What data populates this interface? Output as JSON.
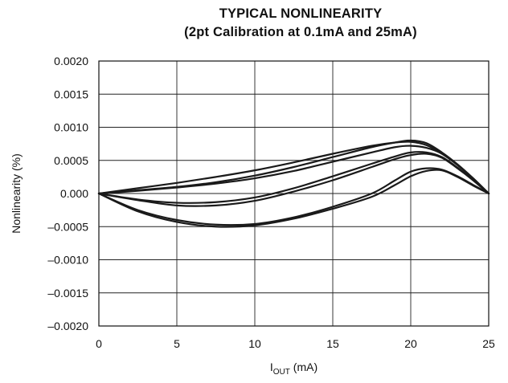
{
  "chart_data": {
    "type": "line",
    "title": "TYPICAL NONLINEARITY",
    "subtitle": "(2pt Calibration at 0.1mA and 25mA)",
    "xlabel": {
      "main": "I",
      "sub": "OUT",
      "unit": " (mA)"
    },
    "ylabel": "Nonlinearity (%)",
    "xlim": [
      0,
      25
    ],
    "ylim": [
      -0.002,
      0.002
    ],
    "x_ticks": [
      0,
      5,
      10,
      15,
      20,
      25
    ],
    "x_tick_labels": [
      "0",
      "5",
      "10",
      "15",
      "20",
      "25"
    ],
    "y_ticks": [
      0.002,
      0.0015,
      0.001,
      0.0005,
      0,
      -0.0005,
      -0.001,
      -0.0015,
      -0.002
    ],
    "y_tick_labels": [
      "0.0020",
      "0.0015",
      "0.0010",
      "0.0005",
      "0.000",
      "–0.0005",
      "–0.0010",
      "–0.0015",
      "–0.0020"
    ],
    "grid": true,
    "line_color": "#1a1a1a",
    "series": [
      {
        "x": [
          0,
          2.5,
          5,
          7.5,
          10,
          12.5,
          15,
          17.5,
          19,
          20,
          21,
          22,
          23,
          24,
          25
        ],
        "y": [
          0,
          8e-05,
          0.00016,
          0.00025,
          0.00035,
          0.00047,
          0.0006,
          0.00072,
          0.00077,
          0.00078,
          0.00073,
          0.0006,
          0.00043,
          0.00023,
          0
        ]
      },
      {
        "x": [
          0,
          2.5,
          5,
          7.5,
          10,
          12.5,
          15,
          17.5,
          19,
          20,
          21,
          22,
          23,
          24,
          25
        ],
        "y": [
          0,
          5e-05,
          0.0001,
          0.00017,
          0.00027,
          0.0004,
          0.00055,
          0.0007,
          0.00077,
          0.0008,
          0.00076,
          0.00062,
          0.00044,
          0.00023,
          0
        ]
      },
      {
        "x": [
          0,
          2.5,
          5,
          7.5,
          10,
          12.5,
          15,
          17.5,
          19,
          20,
          21,
          22,
          23,
          24,
          25
        ],
        "y": [
          0,
          4e-05,
          9e-05,
          0.00015,
          0.00023,
          0.00034,
          0.00048,
          0.00062,
          0.0007,
          0.00072,
          0.00069,
          0.0006,
          0.00043,
          0.00022,
          0
        ]
      },
      {
        "x": [
          0,
          2.5,
          5,
          7.5,
          10,
          12.5,
          15,
          17.5,
          19,
          20,
          21,
          22,
          23,
          24,
          25
        ],
        "y": [
          0,
          -9e-05,
          -0.00014,
          -0.00013,
          -6e-05,
          8e-05,
          0.00026,
          0.00045,
          0.00056,
          0.00062,
          0.00062,
          0.00055,
          0.00039,
          0.0002,
          0
        ]
      },
      {
        "x": [
          0,
          2.5,
          5,
          7.5,
          10,
          12.5,
          15,
          17.5,
          19,
          20,
          21,
          22,
          23,
          24,
          25
        ],
        "y": [
          0,
          -0.0001,
          -0.00018,
          -0.00018,
          -0.00011,
          3e-05,
          0.0002,
          0.0004,
          0.00052,
          0.00058,
          0.0006,
          0.00054,
          0.00038,
          0.0002,
          0
        ]
      },
      {
        "x": [
          0,
          2.5,
          5,
          7.5,
          10,
          12.5,
          15,
          17.5,
          19,
          20,
          21,
          22,
          23,
          24,
          25
        ],
        "y": [
          0,
          -0.00025,
          -0.0004,
          -0.00047,
          -0.00046,
          -0.00036,
          -0.0002,
          0,
          0.0002,
          0.00033,
          0.00038,
          0.00036,
          0.00026,
          0.00013,
          0
        ]
      },
      {
        "x": [
          0,
          2.5,
          5,
          7.5,
          10,
          12.5,
          15,
          17.5,
          19,
          20,
          21,
          22,
          23,
          24,
          25
        ],
        "y": [
          0,
          -0.00027,
          -0.00043,
          -0.0005,
          -0.00048,
          -0.00038,
          -0.00023,
          -5e-05,
          0.00013,
          0.00026,
          0.00034,
          0.00035,
          0.00025,
          0.00012,
          0
        ]
      }
    ]
  }
}
